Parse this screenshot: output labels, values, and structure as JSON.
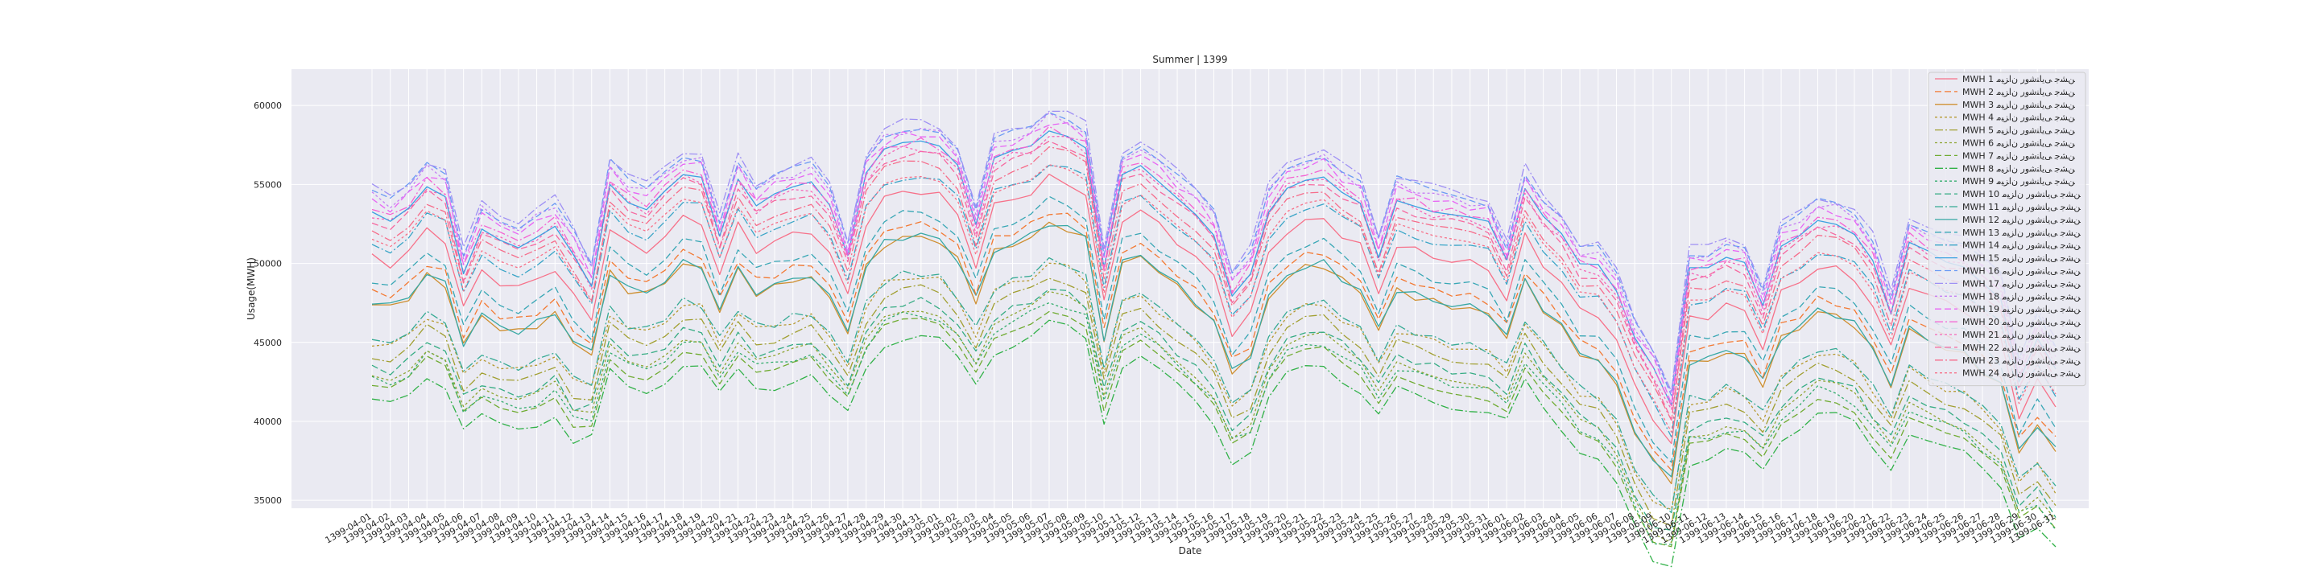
{
  "chart_data": {
    "type": "line",
    "title": "Summer | 1399",
    "xlabel": "Date",
    "ylabel": "Usage(MWH)",
    "ylim": [
      34500,
      62300
    ],
    "yticks": [
      35000,
      40000,
      45000,
      50000,
      55000,
      60000
    ],
    "grid": true,
    "legend_position": "top-right",
    "x": [
      "1399-04-01",
      "1399-04-02",
      "1399-04-03",
      "1399-04-04",
      "1399-04-05",
      "1399-04-06",
      "1399-04-07",
      "1399-04-08",
      "1399-04-09",
      "1399-04-10",
      "1399-04-11",
      "1399-04-12",
      "1399-04-13",
      "1399-04-14",
      "1399-04-15",
      "1399-04-16",
      "1399-04-17",
      "1399-04-18",
      "1399-04-19",
      "1399-04-20",
      "1399-04-21",
      "1399-04-22",
      "1399-04-23",
      "1399-04-24",
      "1399-04-25",
      "1399-04-26",
      "1399-04-27",
      "1399-04-28",
      "1399-04-29",
      "1399-04-30",
      "1399-04-31",
      "1399-05-01",
      "1399-05-02",
      "1399-05-03",
      "1399-05-04",
      "1399-05-05",
      "1399-05-06",
      "1399-05-07",
      "1399-05-08",
      "1399-05-09",
      "1399-05-10",
      "1399-05-11",
      "1399-05-12",
      "1399-05-13",
      "1399-05-14",
      "1399-05-15",
      "1399-05-16",
      "1399-05-17",
      "1399-05-18",
      "1399-05-19",
      "1399-05-20",
      "1399-05-21",
      "1399-05-22",
      "1399-05-23",
      "1399-05-24",
      "1399-05-25",
      "1399-05-26",
      "1399-05-27",
      "1399-05-28",
      "1399-05-29",
      "1399-05-30",
      "1399-05-31",
      "1399-06-01",
      "1399-06-02",
      "1399-06-03",
      "1399-06-04",
      "1399-06-05",
      "1399-06-06",
      "1399-06-07",
      "1399-06-08",
      "1399-06-09",
      "1399-06-10",
      "1399-06-11",
      "1399-06-12",
      "1399-06-13",
      "1399-06-14",
      "1399-06-15",
      "1399-06-16",
      "1399-06-17",
      "1399-06-18",
      "1399-06-19",
      "1399-06-20",
      "1399-06-21",
      "1399-06-22",
      "1399-06-23",
      "1399-06-24",
      "1399-06-25",
      "1399-06-26",
      "1399-06-27",
      "1399-06-28",
      "1399-06-29",
      "1399-06-30",
      "1399-06-31"
    ],
    "legend": [
      "MWH 1 ﻦﺸﺟ ﯽﯾﺎﻨﺷﻭﺭ ﻥﺍﺰﯿﻣ",
      "MWH 2 ﻦﺸﺟ ﯽﯾﺎﻨﺷﻭﺭ ﻥﺍﺰﯿﻣ",
      "MWH 3 ﻦﺸﺟ ﯽﯾﺎﻨﺷﻭﺭ ﻥﺍﺰﯿﻣ",
      "MWH 4 ﻦﺸﺟ ﯽﯾﺎﻨﺷﻭﺭ ﻥﺍﺰﯿﻣ",
      "MWH 5 ﻦﺸﺟ ﯽﯾﺎﻨﺷﻭﺭ ﻥﺍﺰﯿﻣ",
      "MWH 6 ﻦﺸﺟ ﯽﯾﺎﻨﺷﻭﺭ ﻥﺍﺰﯿﻣ",
      "MWH 7 ﻦﺸﺟ ﯽﯾﺎﻨﺷﻭﺭ ﻥﺍﺰﯿﻣ",
      "MWH 8 ﻦﺸﺟ ﯽﯾﺎﻨﺷﻭﺭ ﻥﺍﺰﯿﻣ",
      "MWH 9 ﻦﺸﺟ ﯽﯾﺎﻨﺷﻭﺭ ﻥﺍﺰﯿﻣ",
      "MWH 10 ﻦﺸﺟ ﯽﯾﺎﻨﺷﻭﺭ ﻥﺍﺰﯿﻣ",
      "MWH 11 ﻦﺸﺟ ﯽﯾﺎﻨﺷﻭﺭ ﻥﺍﺰﯿﻣ",
      "MWH 12 ﻦﺸﺟ ﯽﯾﺎﻨﺷﻭﺭ ﻥﺍﺰﯿﻣ",
      "MWH 13 ﻦﺸﺟ ﯽﯾﺎﻨﺷﻭﺭ ﻥﺍﺰﯿﻣ",
      "MWH 14 ﻦﺸﺟ ﯽﯾﺎﻨﺷﻭﺭ ﻥﺍﺰﯿﻣ",
      "MWH 15 ﻦﺸﺟ ﯽﯾﺎﻨﺷﻭﺭ ﻥﺍﺰﯿﻣ",
      "MWH 16 ﻦﺸﺟ ﯽﯾﺎﻨﺷﻭﺭ ﻥﺍﺰﯿﻣ",
      "MWH 17 ﻦﺸﺟ ﯽﯾﺎﻨﺷﻭﺭ ﻥﺍﺰﯿﻣ",
      "MWH 18 ﻦﺸﺟ ﯽﯾﺎﻨﺷﻭﺭ ﻥﺍﺰﯿﻣ",
      "MWH 19 ﻦﺸﺟ ﯽﯾﺎﻨﺷﻭﺭ ﻥﺍﺰﯿﻣ",
      "MWH 20 ﻦﺸﺟ ﯽﯾﺎﻨﺷﻭﺭ ﻥﺍﺰﯿﻣ",
      "MWH 21 ﻦﺸﺟ ﯽﯾﺎﻨﺷﻭﺭ ﻥﺍﺰﯿﻣ",
      "MWH 22 ﻦﺸﺟ ﯽﯾﺎﻨﺷﻭﺭ ﻥﺍﺰﯿﻣ",
      "MWH 23 ﻦﺸﺟ ﯽﯾﺎﻨﺷﻭﺭ ﻥﺍﺰﯿﻣ",
      "MWH 24 ﻦﺸﺟ ﯽﯾﺎﻨﺷﻭﺭ ﻥﺍﺰﯿﻣ"
    ],
    "series_colors": [
      "#f77189",
      "#f37932",
      "#ce8f31",
      "#b69931",
      "#a19f31",
      "#8ea431",
      "#6fab31",
      "#31b148",
      "#34ad6d",
      "#35ac83",
      "#36aa94",
      "#37a8a4",
      "#38a7b5",
      "#3aa5c7",
      "#3ba2e1",
      "#6b9af4",
      "#9e8ff4",
      "#c57ff4",
      "#e865f4",
      "#f563d2",
      "#f566b7",
      "#f6689f",
      "#f66c8a",
      "#f77189"
    ],
    "series_dashes": [
      "solid",
      "8,4",
      "solid",
      "3,3",
      "10,3,2,3",
      "3,3",
      "8,4",
      "10,3,2,3",
      "3,3",
      "8,4",
      "10,3,2,3",
      "solid",
      "8,4",
      "10,3,2,3",
      "solid",
      "8,4",
      "10,3,2,3",
      "3,3",
      "8,4",
      "10,3,2,3",
      "3,3",
      "8,4",
      "10,3,2,3",
      "3,3"
    ],
    "base_max": [
      54800,
      54200,
      55100,
      56500,
      55900,
      50800,
      53900,
      53200,
      52700,
      53400,
      54100,
      52300,
      50000,
      56700,
      55500,
      55000,
      56200,
      57200,
      57000,
      53000,
      56800,
      55000,
      55800,
      56200,
      56500,
      55000,
      51500,
      57000,
      58500,
      58900,
      59000,
      58700,
      57500,
      53500,
      58000,
      58500,
      58800,
      59800,
      59500,
      58800,
      51000,
      57200,
      57800,
      56800,
      55800,
      54800,
      53500,
      49500,
      51000,
      55000,
      56500,
      57000,
      57200,
      56200,
      55500,
      51800,
      55600,
      55200,
      54800,
      54600,
      54400,
      54100,
      51400,
      56100,
      54300,
      53200,
      51200,
      51200,
      49500,
      46500,
      44700,
      42000,
      51000,
      51000,
      51700,
      51400,
      48500,
      52500,
      53200,
      54200,
      54000,
      53400,
      51800,
      48200,
      53000,
      52500,
      51800,
      51500,
      50500,
      49500,
      44000,
      47000,
      45000
    ],
    "series_offsets": [
      -4400,
      -6500,
      -7300,
      -9800,
      -10600,
      -11800,
      -12600,
      -13600,
      -12200,
      -11400,
      -9600,
      -7200,
      -5800,
      -3400,
      -1500,
      -300,
      0,
      -500,
      -800,
      -1300,
      -1700,
      -2000,
      -2600,
      -3300
    ],
    "low_offsets": [
      -2500,
      -3500,
      -3800,
      -5400,
      -6000,
      -6800,
      -7200,
      -7800,
      -6900,
      -6200,
      -5000,
      -3800,
      -3200,
      -2000,
      -900,
      -200,
      0,
      -300,
      -500,
      -800,
      -1000,
      -1200,
      -1500,
      -1900
    ]
  }
}
